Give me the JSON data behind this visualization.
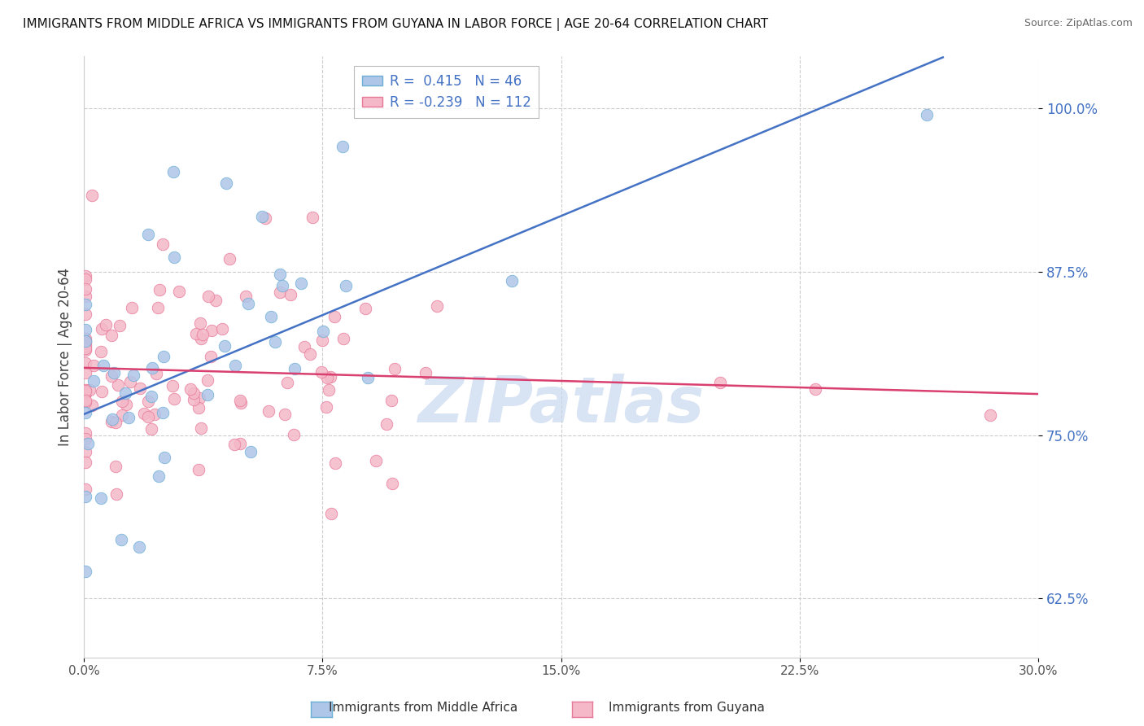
{
  "title": "IMMIGRANTS FROM MIDDLE AFRICA VS IMMIGRANTS FROM GUYANA IN LABOR FORCE | AGE 20-64 CORRELATION CHART",
  "source": "Source: ZipAtlas.com",
  "xmin": 0.0,
  "xmax": 30.0,
  "ymin": 58.0,
  "ymax": 104.0,
  "yticks": [
    62.5,
    75.0,
    87.5,
    100.0
  ],
  "xticks": [
    0.0,
    7.5,
    15.0,
    22.5,
    30.0
  ],
  "series1_label": "Immigrants from Middle Africa",
  "series1_R": 0.415,
  "series1_N": 46,
  "series1_scatter_color": "#aec6e8",
  "series1_edge_color": "#6baed6",
  "series1_line_color": "#4472c4",
  "series2_label": "Immigrants from Guyana",
  "series2_R": -0.239,
  "series2_N": 112,
  "series2_scatter_color": "#f4b8c8",
  "series2_edge_color": "#e87898",
  "series2_line_color": "#d94070",
  "watermark_text": "ZIPatlas",
  "watermark_color": "#c8d8ee",
  "legend_text_color": "#4472c4",
  "background_color": "#ffffff",
  "grid_color": "#cccccc",
  "yaxis_tick_color": "#4472c4",
  "xaxis_tick_color": "#555555",
  "ylabel": "In Labor Force | Age 20-64",
  "ylabel_color": "#444444",
  "title_color": "#111111",
  "source_color": "#666666"
}
